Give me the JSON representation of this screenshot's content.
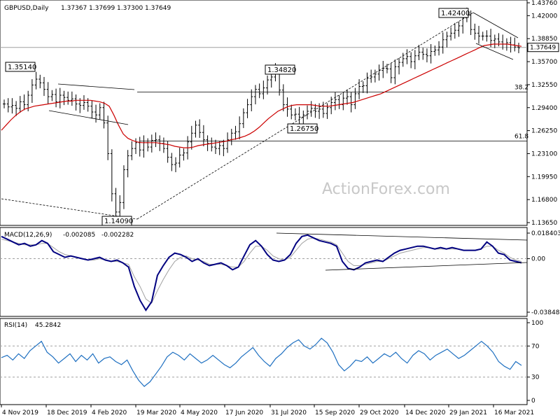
{
  "chart_data": [
    {
      "type": "ohlc",
      "header": {
        "symbol": "GBPUSD,Daily",
        "open": "1.37367",
        "high": "1.37699",
        "low": "1.37300",
        "close": "1.37649"
      },
      "y_ticks": [
        "1.43760",
        "1.42000",
        "1.38850",
        "1.35700",
        "1.32550",
        "1.29400",
        "1.26250",
        "1.23100",
        "1.19950",
        "1.16800",
        "1.13650"
      ],
      "ylim": [
        1.1365,
        1.4376
      ],
      "current_price": "1.37649",
      "peak_labels": [
        "1.42400",
        "1.35140",
        "1.34820",
        "1.26750",
        "1.14090"
      ],
      "fib_labels": [
        "38.2",
        "61.8"
      ],
      "price_series": [
        1.299,
        1.295,
        1.297,
        1.293,
        1.302,
        1.298,
        1.311,
        1.325,
        1.333,
        1.328,
        1.319,
        1.309,
        1.312,
        1.302,
        1.311,
        1.308,
        1.304,
        1.306,
        1.299,
        1.297,
        1.301,
        1.296,
        1.288,
        1.284,
        1.294,
        1.273,
        1.231,
        1.176,
        1.151,
        1.164,
        1.209,
        1.228,
        1.238,
        1.246,
        1.236,
        1.246,
        1.24,
        1.249,
        1.25,
        1.245,
        1.238,
        1.226,
        1.216,
        1.218,
        1.229,
        1.232,
        1.247,
        1.259,
        1.27,
        1.26,
        1.25,
        1.245,
        1.24,
        1.238,
        1.242,
        1.238,
        1.25,
        1.259,
        1.261,
        1.272,
        1.287,
        1.298,
        1.309,
        1.319,
        1.313,
        1.321,
        1.332,
        1.336,
        1.345,
        1.318,
        1.298,
        1.292,
        1.284,
        1.285,
        1.281,
        1.284,
        1.289,
        1.293,
        1.289,
        1.292,
        1.286,
        1.294,
        1.301,
        1.305,
        1.298,
        1.307,
        1.309,
        1.298,
        1.313,
        1.323,
        1.324,
        1.334,
        1.336,
        1.34,
        1.345,
        1.348,
        1.347,
        1.335,
        1.35,
        1.356,
        1.361,
        1.364,
        1.357,
        1.365,
        1.37,
        1.367,
        1.365,
        1.371,
        1.373,
        1.377,
        1.387,
        1.392,
        1.396,
        1.4,
        1.406,
        1.417,
        1.421,
        1.401,
        1.396,
        1.392,
        1.392,
        1.392,
        1.386,
        1.388,
        1.384,
        1.381,
        1.383,
        1.38,
        1.377,
        1.376
      ],
      "ma_series": [
        1.263,
        1.27,
        1.277,
        1.283,
        1.288,
        1.292,
        1.294,
        1.296,
        1.297,
        1.298,
        1.299,
        1.3,
        1.301,
        1.302,
        1.303,
        1.303,
        1.304,
        1.304,
        1.304,
        1.304,
        1.303,
        1.302,
        1.3,
        1.296,
        1.284,
        1.27,
        1.258,
        1.252,
        1.249,
        1.247,
        1.246,
        1.246,
        1.246,
        1.246,
        1.245,
        1.244,
        1.243,
        1.241,
        1.24,
        1.239,
        1.239,
        1.24,
        1.242,
        1.243,
        1.244,
        1.245,
        1.246,
        1.247,
        1.248,
        1.25,
        1.251,
        1.253,
        1.255,
        1.258,
        1.262,
        1.267,
        1.273,
        1.279,
        1.284,
        1.289,
        1.292,
        1.295,
        1.297,
        1.298,
        1.298,
        1.298,
        1.298,
        1.297,
        1.296,
        1.296,
        1.296,
        1.297,
        1.298,
        1.299,
        1.3,
        1.301,
        1.303,
        1.305,
        1.307,
        1.309,
        1.311,
        1.313,
        1.316,
        1.319,
        1.322,
        1.325,
        1.328,
        1.331,
        1.334,
        1.337,
        1.34,
        1.343,
        1.346,
        1.349,
        1.352,
        1.355,
        1.358,
        1.361,
        1.364,
        1.367,
        1.37,
        1.373,
        1.376,
        1.379,
        1.38,
        1.381,
        1.381,
        1.381,
        1.381,
        1.38,
        1.379,
        1.378
      ]
    },
    {
      "type": "line",
      "header": {
        "name": "MACD(12,26,9)",
        "main": "-0.002085",
        "signal": "-0.002282"
      },
      "y_ticks": [
        "0.018403",
        "0.00",
        "-0.038483"
      ],
      "ylim": [
        -0.038483,
        0.018403
      ],
      "macd_series": [
        0.016,
        0.014,
        0.012,
        0.01,
        0.011,
        0.009,
        0.01,
        0.013,
        0.011,
        0.005,
        0.003,
        0.001,
        0.002,
        0.001,
        0.0,
        -0.001,
        0.0,
        0.001,
        -0.001,
        -0.002,
        -0.001,
        -0.003,
        -0.006,
        -0.02,
        -0.03,
        -0.037,
        -0.031,
        -0.012,
        -0.005,
        0.001,
        0.004,
        0.003,
        0.001,
        -0.002,
        0.0,
        -0.003,
        -0.005,
        -0.004,
        -0.003,
        -0.005,
        -0.008,
        -0.006,
        0.002,
        0.01,
        0.013,
        0.009,
        0.003,
        -0.001,
        -0.002,
        -0.001,
        0.003,
        0.011,
        0.016,
        0.017,
        0.015,
        0.013,
        0.012,
        0.011,
        0.009,
        -0.002,
        -0.007,
        -0.008,
        -0.006,
        -0.003,
        -0.002,
        -0.001,
        -0.002,
        0.001,
        0.004,
        0.006,
        0.007,
        0.008,
        0.009,
        0.009,
        0.008,
        0.007,
        0.008,
        0.007,
        0.008,
        0.007,
        0.006,
        0.006,
        0.006,
        0.007,
        0.012,
        0.009,
        0.004,
        0.003,
        -0.001,
        -0.002,
        -0.003
      ],
      "signal_series": [
        0.014,
        0.013,
        0.012,
        0.011,
        0.01,
        0.01,
        0.01,
        0.011,
        0.011,
        0.008,
        0.005,
        0.003,
        0.002,
        0.001,
        0.0,
        -0.001,
        -0.001,
        0.0,
        -0.001,
        -0.002,
        -0.002,
        -0.003,
        -0.004,
        -0.013,
        -0.02,
        -0.029,
        -0.032,
        -0.023,
        -0.015,
        -0.008,
        -0.002,
        0.001,
        0.002,
        0.0,
        -0.001,
        -0.002,
        -0.004,
        -0.004,
        -0.004,
        -0.005,
        -0.006,
        -0.006,
        -0.002,
        0.004,
        0.009,
        0.009,
        0.006,
        0.002,
        0.0,
        -0.001,
        0.001,
        0.006,
        0.011,
        0.014,
        0.015,
        0.014,
        0.013,
        0.012,
        0.01,
        0.004,
        -0.002,
        -0.005,
        -0.005,
        -0.004,
        -0.003,
        -0.002,
        -0.002,
        0.0,
        0.002,
        0.004,
        0.005,
        0.006,
        0.007,
        0.008,
        0.008,
        0.007,
        0.007,
        0.007,
        0.007,
        0.007,
        0.006,
        0.006,
        0.006,
        0.007,
        0.009,
        0.009,
        0.006,
        0.004,
        0.001,
        -0.001,
        -0.002
      ]
    },
    {
      "type": "line",
      "header": {
        "name": "RSI(14)",
        "value": "45.2842"
      },
      "y_ticks": [
        "100",
        "70",
        "30",
        "0"
      ],
      "ylim": [
        0,
        100
      ],
      "rsi_series": [
        55,
        58,
        52,
        60,
        54,
        64,
        70,
        76,
        62,
        56,
        48,
        54,
        60,
        50,
        58,
        52,
        60,
        48,
        54,
        56,
        50,
        46,
        52,
        38,
        26,
        18,
        24,
        34,
        44,
        56,
        62,
        58,
        52,
        60,
        54,
        48,
        52,
        58,
        52,
        46,
        42,
        48,
        56,
        62,
        68,
        58,
        50,
        44,
        54,
        60,
        68,
        74,
        78,
        70,
        66,
        72,
        80,
        74,
        62,
        46,
        38,
        44,
        52,
        50,
        56,
        48,
        54,
        60,
        56,
        62,
        54,
        48,
        58,
        64,
        60,
        52,
        58,
        62,
        66,
        60,
        54,
        58,
        64,
        70,
        76,
        70,
        62,
        50,
        44,
        40,
        50,
        45
      ]
    }
  ],
  "x_labels": [
    "4 Nov 2019",
    "18 Dec 2019",
    "4 Feb 2020",
    "19 Mar 2020",
    "4 May 2020",
    "17 Jun 2020",
    "31 Jul 2020",
    "15 Sep 2020",
    "29 Oct 2020",
    "14 Dec 2020",
    "29 Jan 2021",
    "16 Mar 2021"
  ],
  "watermark": "ActionForex.com",
  "colors": {
    "price": "#000000",
    "ma": "#cc0000",
    "macd": "#000080",
    "signal": "#a0a0a0",
    "grid": "#c0c0c0"
  }
}
